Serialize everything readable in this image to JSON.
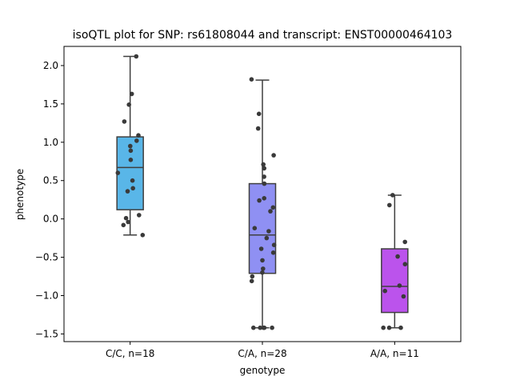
{
  "chart_data": {
    "type": "box",
    "title": "isoQTL plot for SNP: rs61808044 and transcript: ENST00000464103",
    "xlabel": "genotype",
    "ylabel": "phenotype",
    "ylim": [
      -1.6,
      2.25
    ],
    "yticks": [
      -1.5,
      -1.0,
      -0.5,
      0.0,
      0.5,
      1.0,
      1.5,
      2.0
    ],
    "ytick_labels": [
      "−1.5",
      "−1.0",
      "−0.5",
      "0.0",
      "0.5",
      "1.0",
      "1.5",
      "2.0"
    ],
    "grid": false,
    "legend": "none",
    "categories": [
      "C/C, n=18",
      "C/A, n=28",
      "A/A, n=11"
    ],
    "boxes": [
      {
        "category": "C/C, n=18",
        "color": "#59b6e8",
        "whisker_low": -0.21,
        "q1": 0.12,
        "median": 0.67,
        "q3": 1.07,
        "whisker_high": 2.12
      },
      {
        "category": "C/A, n=28",
        "color": "#8f90f3",
        "whisker_low": -1.42,
        "q1": -0.71,
        "median": -0.21,
        "q3": 0.46,
        "whisker_high": 1.81
      },
      {
        "category": "A/A, n=11",
        "color": "#bb53ec",
        "whisker_low": -1.42,
        "q1": -1.22,
        "median": -0.88,
        "q3": -0.39,
        "whisker_high": 0.31
      }
    ],
    "points": [
      [
        2.12,
        1.63,
        1.49,
        1.27,
        1.09,
        1.02,
        0.95,
        0.89,
        0.77,
        0.6,
        0.5,
        0.4,
        0.36,
        0.05,
        0.01,
        -0.04,
        -0.08,
        -0.21
      ],
      [
        1.82,
        1.37,
        1.18,
        0.83,
        0.71,
        0.66,
        0.55,
        0.46,
        0.27,
        0.24,
        0.15,
        0.1,
        -0.12,
        -0.16,
        -0.25,
        -0.34,
        -0.39,
        -0.44,
        -0.54,
        -0.65,
        -0.7,
        -0.75,
        -0.81,
        -1.42,
        -1.42,
        -1.42,
        -1.42,
        -1.42
      ],
      [
        0.31,
        0.18,
        -0.3,
        -0.49,
        -0.59,
        -0.87,
        -0.94,
        -1.01,
        -1.42,
        -1.42,
        -1.42
      ]
    ]
  }
}
